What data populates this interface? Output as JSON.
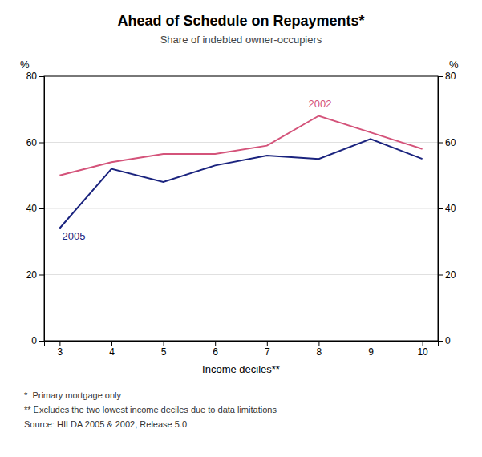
{
  "chart_data": {
    "type": "line",
    "title": "Ahead of Schedule on Repayments*",
    "subtitle": "Share of indebted owner-occupiers",
    "xlabel": "Income deciles**",
    "ylabel": "%",
    "y2label": "%",
    "x": [
      3,
      4,
      5,
      6,
      7,
      8,
      9,
      10
    ],
    "series": [
      {
        "color": "#d4537a",
        "values": [
          50,
          54,
          56.5,
          56.5,
          59,
          68,
          63,
          58
        ]
      },
      {
        "color": "#1a237e",
        "values": [
          34,
          52,
          48,
          53,
          56,
          55,
          61,
          55
        ]
      }
    ],
    "annotations": [
      {
        "text": "2002",
        "x": 7.8,
        "y": 70.5,
        "color": "#d4537a"
      },
      {
        "text": "2005",
        "x": 3.05,
        "y": 30.5,
        "color": "#1a237e"
      }
    ],
    "xlim": [
      2.7,
      10.3
    ],
    "xticks": [
      3,
      4,
      5,
      6,
      7,
      8,
      9,
      10
    ],
    "ylim": [
      0,
      80
    ],
    "yticks": [
      0,
      20,
      40,
      60,
      80
    ],
    "y2lim": [
      0,
      80
    ],
    "y2ticks": [
      0,
      20,
      40,
      60,
      80
    ],
    "grid": true,
    "footnotes": [
      "*  Primary mortgage only",
      "** Excludes the two lowest income deciles due to data limitations",
      "Source: HILDA 2005 & 2002, Release 5.0"
    ]
  }
}
